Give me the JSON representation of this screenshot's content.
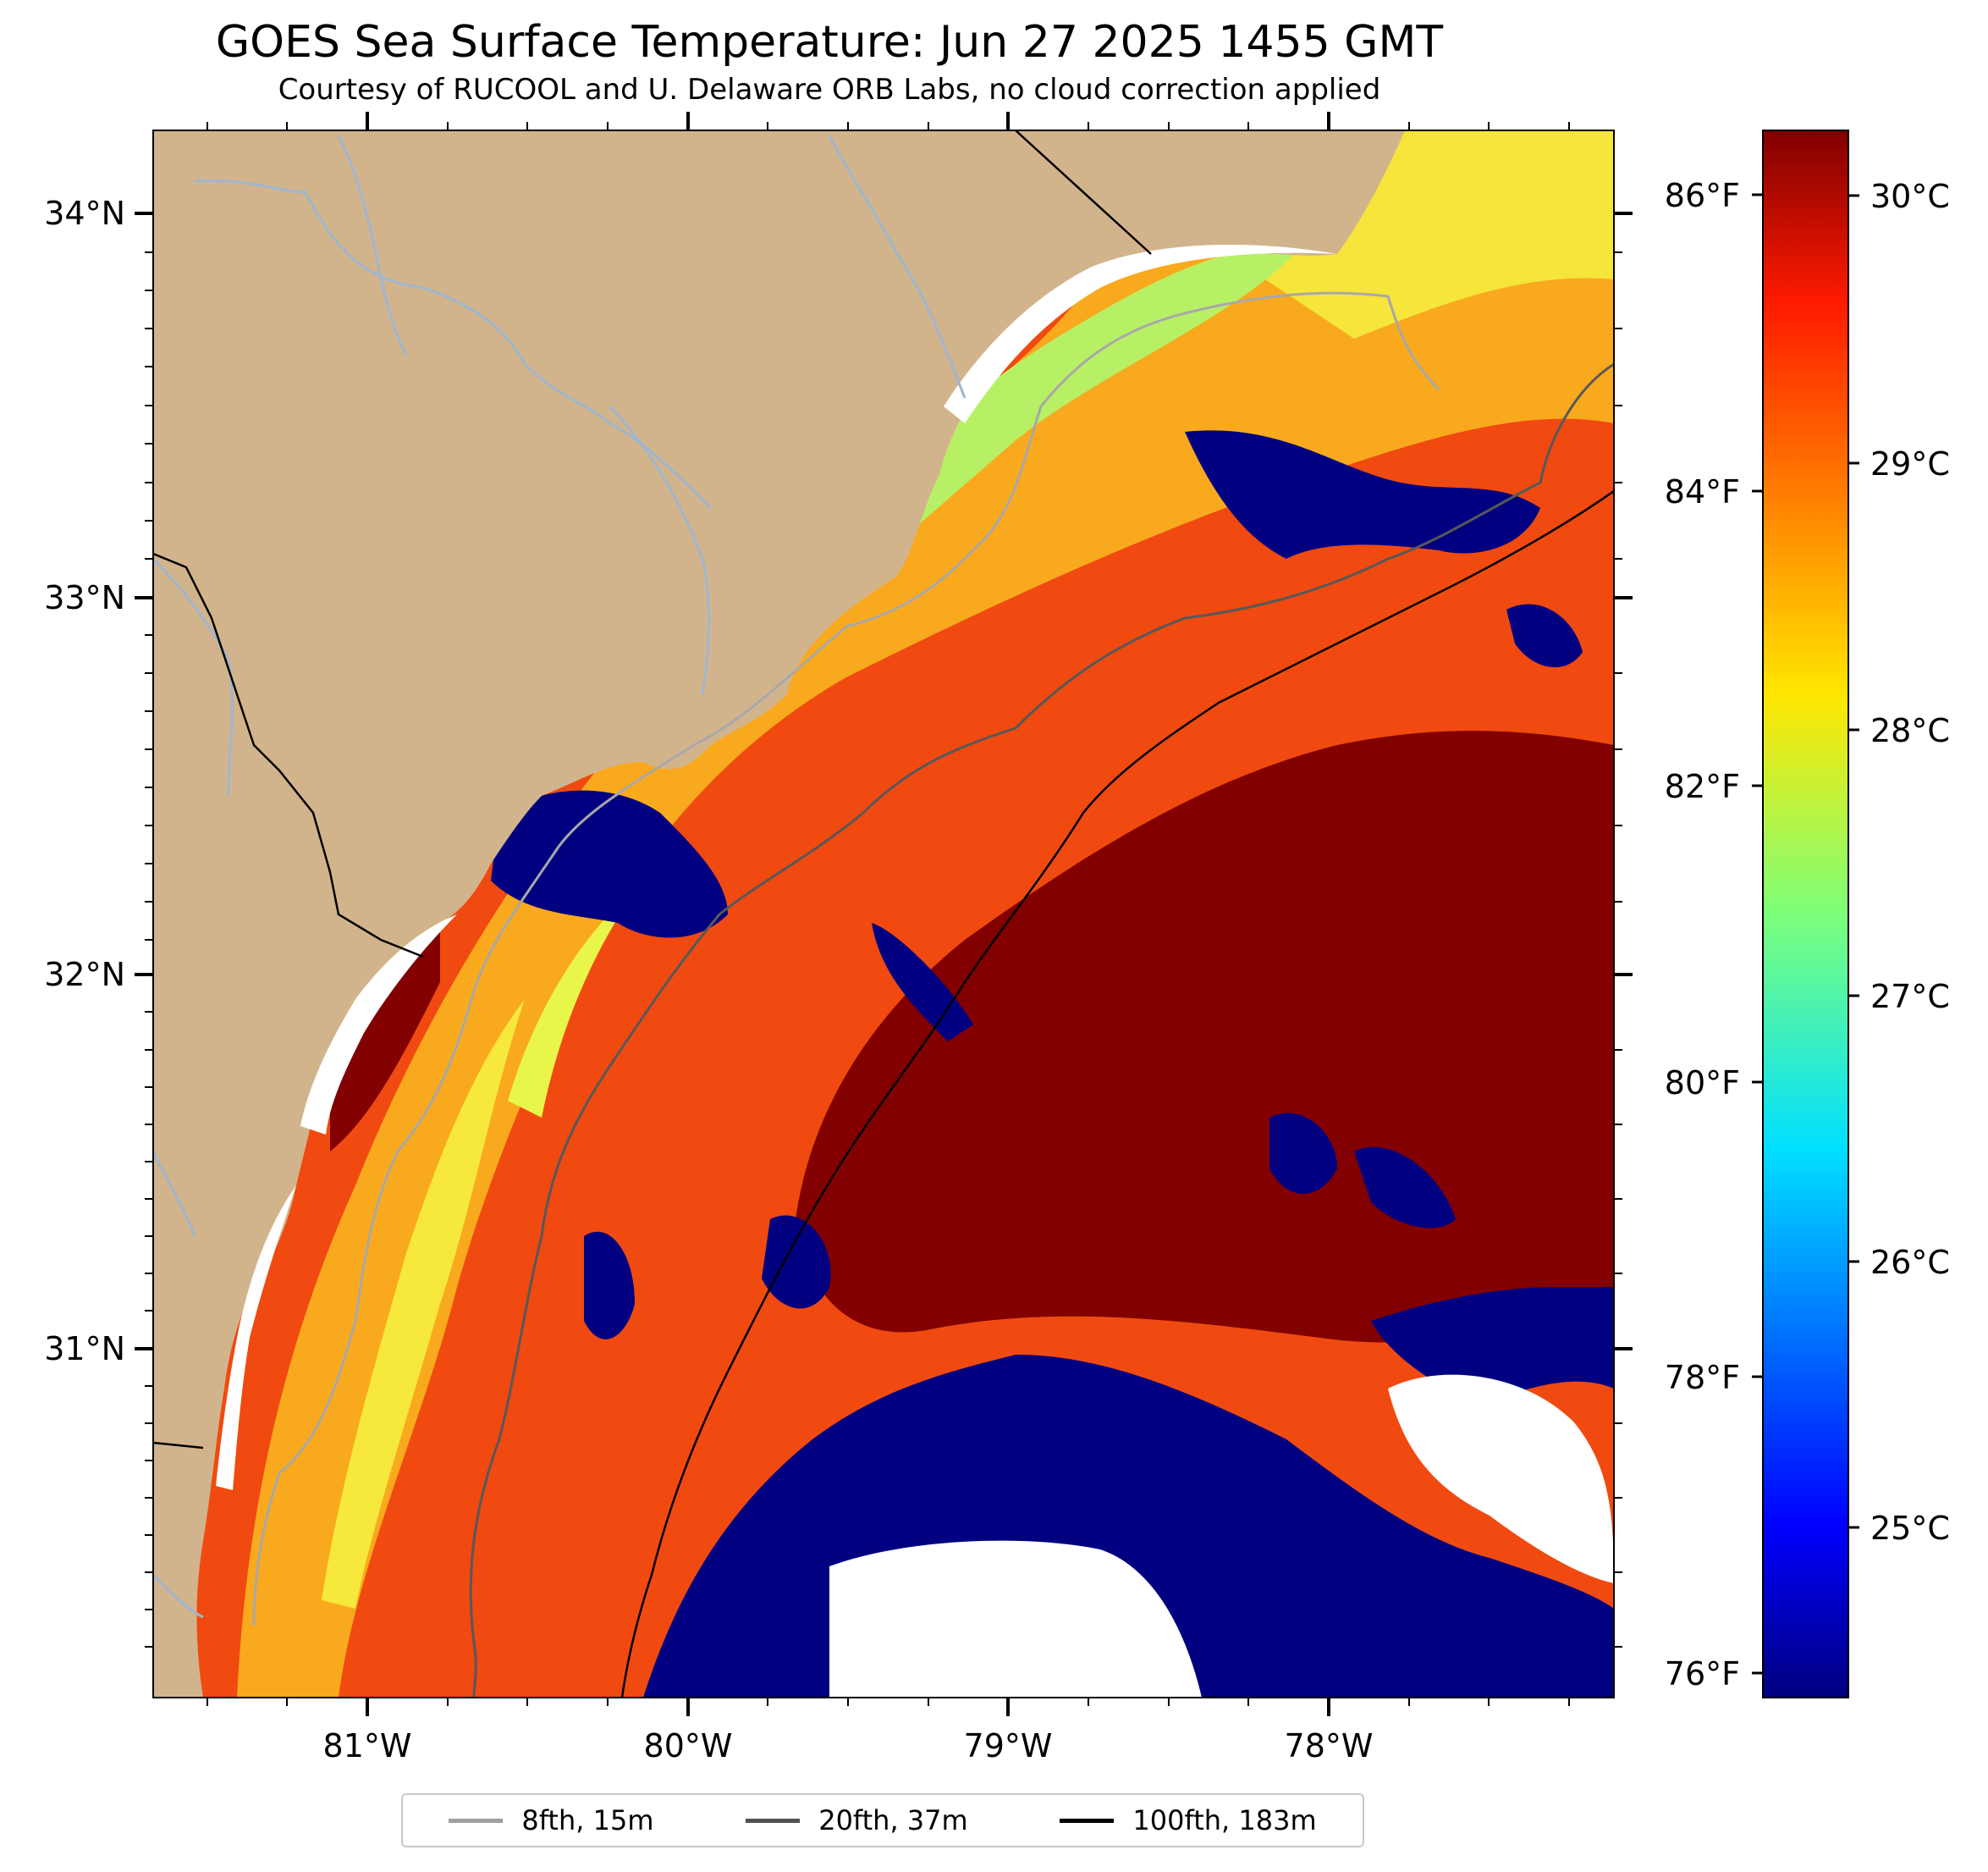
{
  "title": "GOES Sea Surface Temperature: Jun 27 2025 1455 GMT",
  "subtitle": "Courtesy of RUCOOL and U. Delaware ORB Labs, no cloud correction applied",
  "map": {
    "lat_labels": [
      "34°N",
      "33°N",
      "32°N",
      "31°N"
    ],
    "lon_labels": [
      "81°W",
      "80°W",
      "79°W",
      "78°W"
    ],
    "fahrenheit_labels": [
      "86°F",
      "84°F",
      "82°F",
      "80°F",
      "78°F",
      "76°F"
    ],
    "celsius_labels": [
      "30°C",
      "29°C",
      "28°C",
      "27°C",
      "26°C",
      "25°C"
    ],
    "colors": {
      "land": "#d2b48c",
      "missing": "#ffffff",
      "cold": "#000080",
      "warm": "#800000"
    },
    "colormap": "jet",
    "colorbar_range_c": [
      24.4,
      30.3
    ]
  },
  "legend": {
    "items": [
      {
        "label": "8fth, 15m",
        "color": "#a0a0a0"
      },
      {
        "label": "20fth, 37m",
        "color": "#505050"
      },
      {
        "label": "100fth, 183m",
        "color": "#000000"
      }
    ]
  }
}
